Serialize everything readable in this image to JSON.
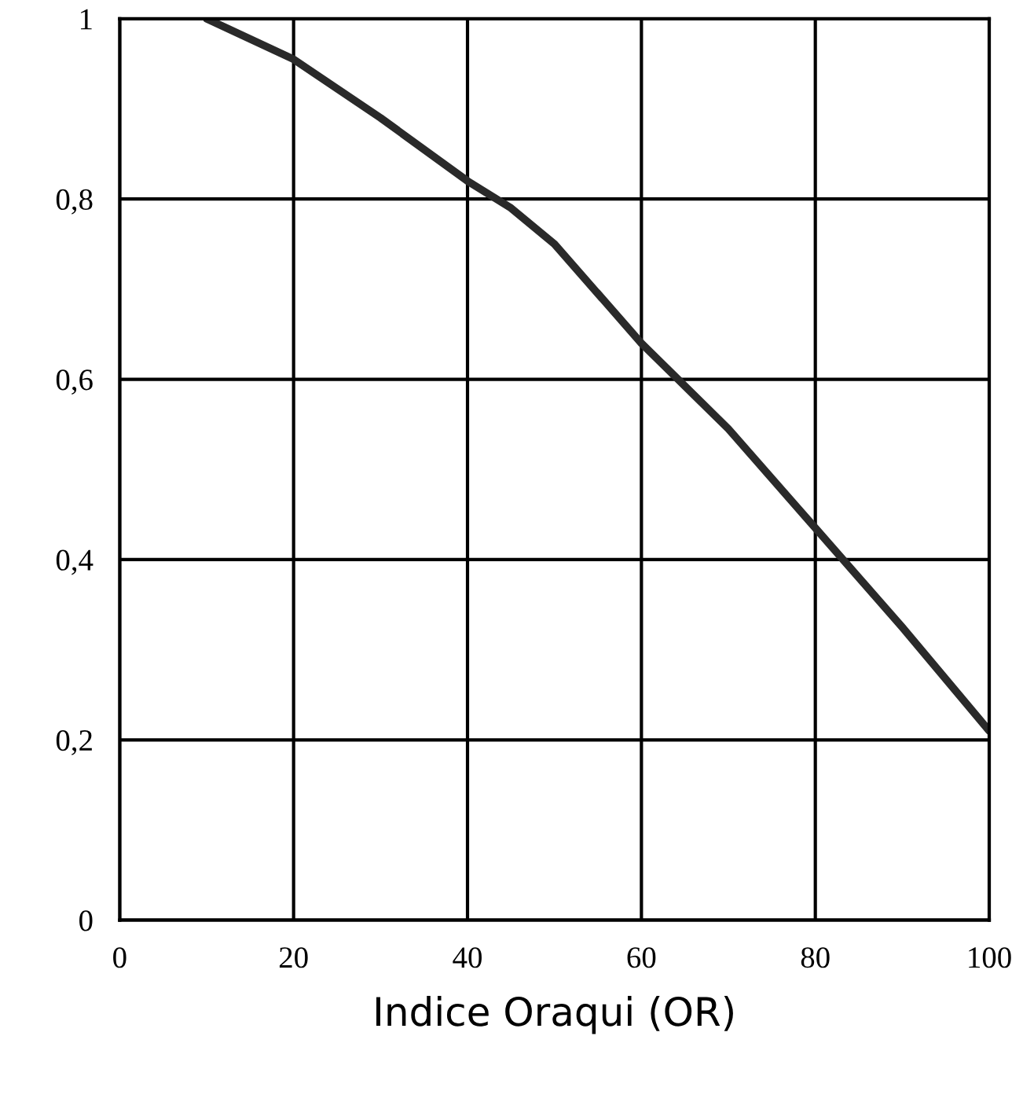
{
  "chart_data": {
    "type": "line",
    "xlabel": "Indice Oraqui (OR)",
    "x": [
      10,
      20,
      30,
      40,
      45,
      50,
      60,
      70,
      80,
      90,
      100
    ],
    "series": [
      {
        "color": "#2a2a2a",
        "values": [
          1,
          0.955,
          0.89,
          0.82,
          0.79,
          0.75,
          0.64,
          0.545,
          0.435,
          0.325,
          0.21
        ]
      }
    ],
    "xlim": [
      0,
      100
    ],
    "ylim": [
      0,
      1
    ],
    "xticks": [
      0,
      20,
      40,
      60,
      80,
      100
    ],
    "yticks": [
      0,
      {
        "value": 0.2,
        "label": "0,2"
      },
      {
        "value": 0.4,
        "label": "0,4"
      },
      {
        "value": 0.6,
        "label": "0,6"
      },
      {
        "value": 0.8,
        "label": "0,8"
      },
      1
    ],
    "grid": true,
    "marker": "none",
    "line_style": "solid"
  }
}
